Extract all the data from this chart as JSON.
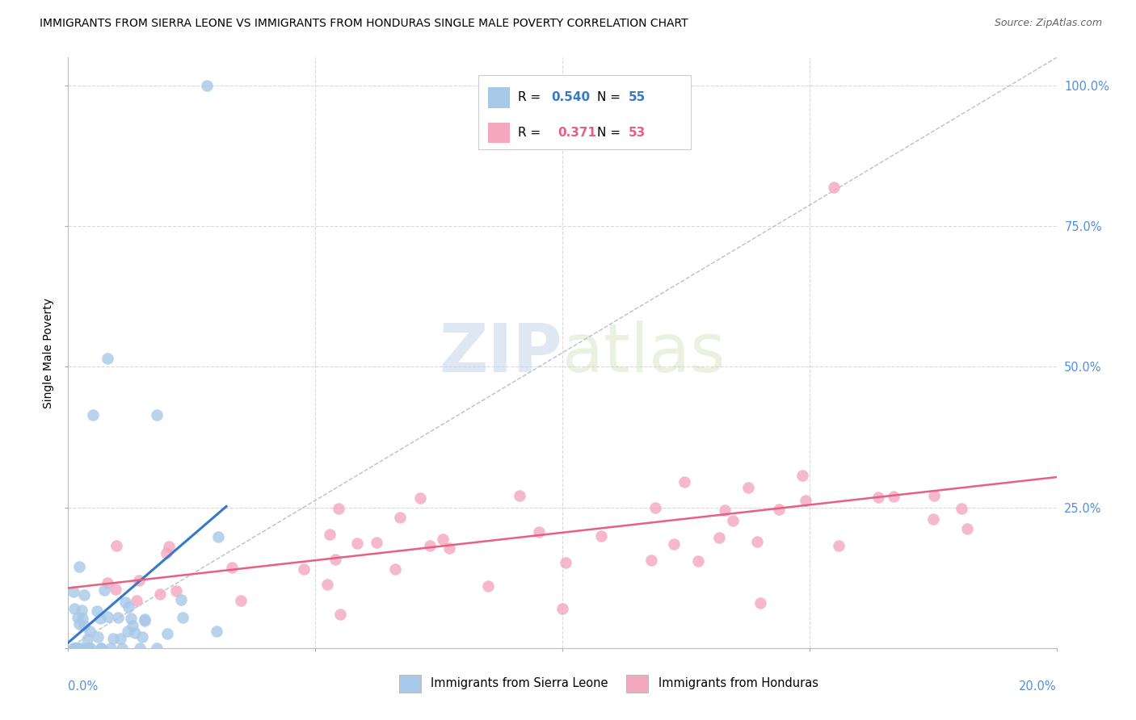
{
  "title": "IMMIGRANTS FROM SIERRA LEONE VS IMMIGRANTS FROM HONDURAS SINGLE MALE POVERTY CORRELATION CHART",
  "source": "Source: ZipAtlas.com",
  "ylabel": "Single Male Poverty",
  "legend_label_sierra": "Immigrants from Sierra Leone",
  "legend_label_honduras": "Immigrants from Honduras",
  "sierra_color": "#a8c8e8",
  "honduras_color": "#f4a8c0",
  "sierra_line_color": "#3878c8",
  "honduras_line_color": "#e86080",
  "diagonal_color": "#b0b8d0",
  "watermark_color": "#c8d8ee",
  "xlim": [
    0.0,
    0.2
  ],
  "ylim": [
    0.0,
    1.05
  ],
  "grid_color": "#d8d8e0",
  "right_tick_color": "#5090e0",
  "bottom_tick_color": "#5090e0"
}
